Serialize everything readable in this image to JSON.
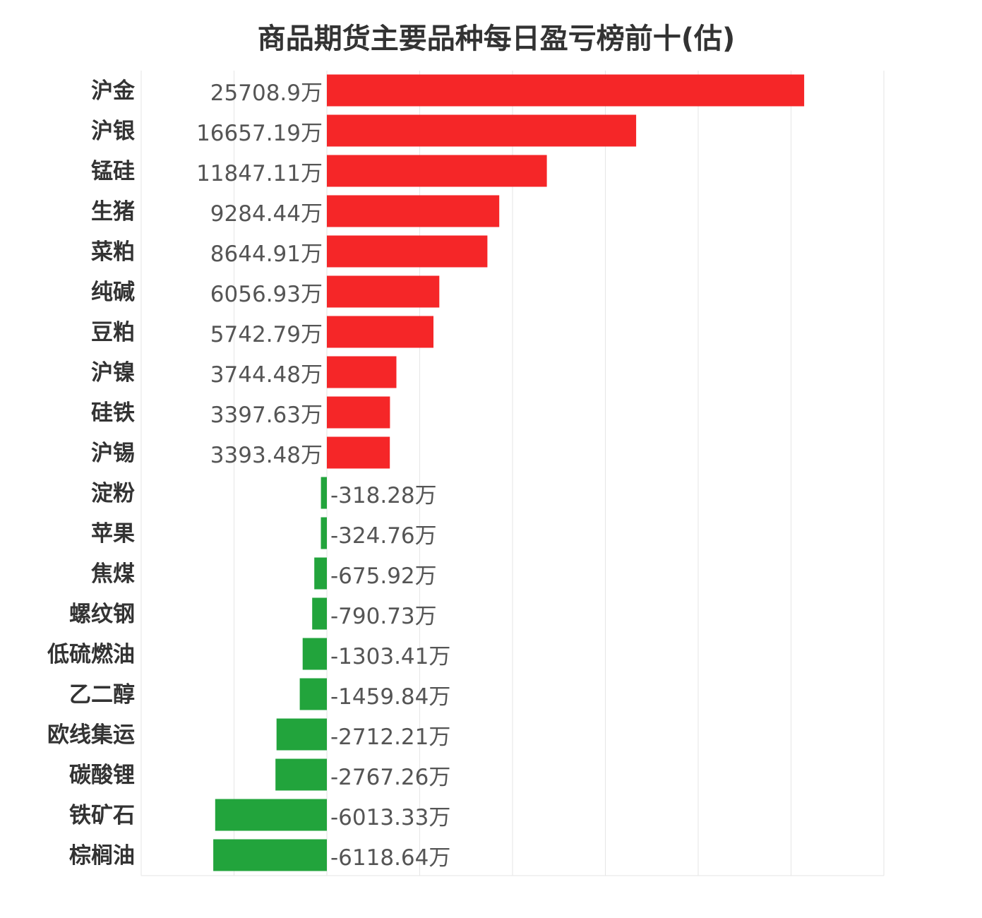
{
  "chart_data": {
    "type": "bar",
    "orientation": "horizontal",
    "title": "商品期货主要品种每日盈亏榜前十(估)",
    "unit": "万",
    "categories": [
      "沪金",
      "沪银",
      "锰硅",
      "生猪",
      "菜粕",
      "纯碱",
      "豆粕",
      "沪镍",
      "硅铁",
      "沪锡",
      "淀粉",
      "苹果",
      "焦煤",
      "螺纹钢",
      "低硫燃油",
      "乙二醇",
      "欧线集运",
      "碳酸锂",
      "铁矿石",
      "棕榈油"
    ],
    "values": [
      25708.9,
      16657.19,
      11847.11,
      9284.44,
      8644.91,
      6056.93,
      5742.79,
      3744.48,
      3397.63,
      3393.48,
      -318.28,
      -324.76,
      -675.92,
      -790.73,
      -1303.41,
      -1459.84,
      -2712.21,
      -2767.26,
      -6013.33,
      -6118.64
    ],
    "value_labels": [
      "25708.9万",
      "16657.19万",
      "11847.11万",
      "9284.44万",
      "8644.91万",
      "6056.93万",
      "5742.79万",
      "3744.48万",
      "3397.63万",
      "3393.48万",
      "-318.28万",
      "-324.76万",
      "-675.92万",
      "-790.73万",
      "-1303.41万",
      "-1459.84万",
      "-2712.21万",
      "-2767.26万",
      "-6013.33万",
      "-6118.64万"
    ],
    "xlim": [
      -10000,
      30000
    ],
    "grid": true,
    "legend": "none",
    "colors": {
      "positive": "#f52628",
      "negative": "#22a43c"
    }
  }
}
